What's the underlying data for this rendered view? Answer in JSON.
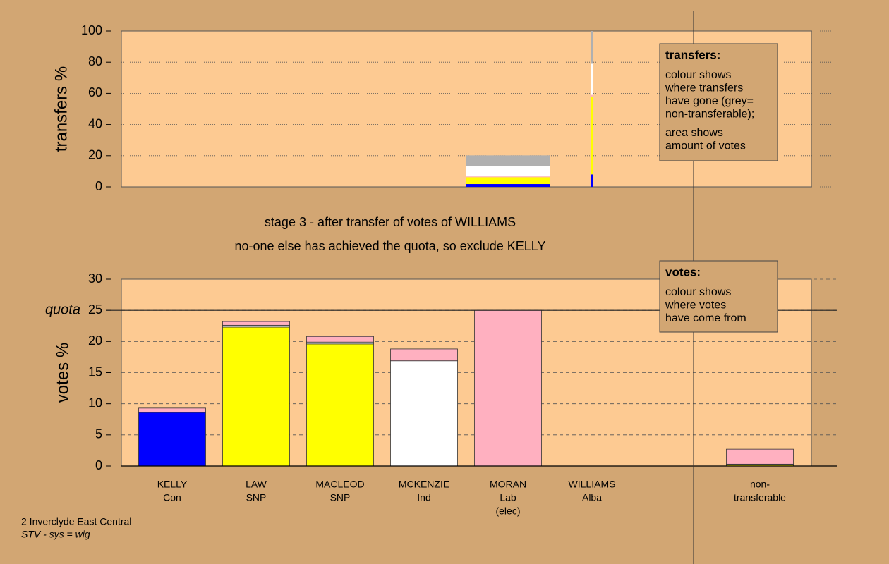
{
  "stage_notes": [
    "stage 3 - after transfer of votes of WILLIAMS",
    "no-one else has achieved the quota, so exclude KELLY"
  ],
  "footer": [
    "2 Inverclyde East Central",
    "STV - sys = wig"
  ],
  "legend_boxes": [
    {
      "title": "transfers:",
      "lines": [
        "colour shows",
        "where transfers",
        "have gone (grey=",
        "non-transferable);",
        "area shows",
        "amount of votes"
      ]
    },
    {
      "title": "votes:",
      "lines": [
        "colour shows",
        "where votes",
        "have come from"
      ]
    }
  ],
  "chart_data": [
    {
      "type": "bar",
      "stacked": true,
      "ylabel": "transfers %",
      "ylim": [
        0,
        100
      ],
      "yticks": [
        0,
        20,
        40,
        60,
        80,
        100
      ],
      "grid": true,
      "series": [
        {
          "color": "#0000ff",
          "values": [
            null,
            null,
            null,
            null,
            1.8,
            8,
            null,
            null
          ]
        },
        {
          "color": "#ffff00",
          "values": [
            null,
            null,
            null,
            null,
            4.4,
            50,
            null,
            null
          ]
        },
        {
          "color": "#ffb0c0",
          "values": [
            null,
            null,
            null,
            null,
            0.5,
            1,
            null,
            null
          ]
        },
        {
          "color": "#ffffff",
          "values": [
            null,
            null,
            null,
            null,
            6.5,
            20,
            null,
            null
          ]
        },
        {
          "color": "#b0b0b0",
          "values": [
            null,
            null,
            null,
            null,
            7,
            21,
            null,
            null
          ]
        }
      ]
    },
    {
      "type": "bar",
      "stacked": true,
      "ylabel": "votes %",
      "ylim": [
        0,
        30
      ],
      "yticks": [
        0,
        5,
        10,
        15,
        20,
        25,
        30
      ],
      "grid": true,
      "quota": {
        "label": "quota",
        "value": 25
      },
      "categories": [
        [
          "KELLY",
          "Con"
        ],
        [
          "LAW",
          "SNP"
        ],
        [
          "MACLEOD",
          "SNP"
        ],
        [
          "MCKENZIE",
          "Ind"
        ],
        [
          "MORAN",
          "Lab",
          "(elec)"
        ],
        [
          "WILLIAMS",
          "Alba"
        ],
        null,
        [
          "non-",
          "transferable"
        ]
      ],
      "series": [
        {
          "color": "#0000ff",
          "values": [
            8.6,
            0,
            0,
            0,
            0,
            0,
            null,
            0
          ]
        },
        {
          "color": "#ffff00",
          "values": [
            0,
            22.3,
            19.6,
            0,
            0,
            0,
            null,
            0.2
          ]
        },
        {
          "color": "#ffffff",
          "values": [
            0,
            0.3,
            0.3,
            16.9,
            0,
            0,
            null,
            0.1
          ]
        },
        {
          "color": "#ffb0c0",
          "values": [
            0.7,
            0.6,
            0.9,
            1.9,
            25,
            0,
            null,
            2.4
          ]
        }
      ]
    }
  ]
}
